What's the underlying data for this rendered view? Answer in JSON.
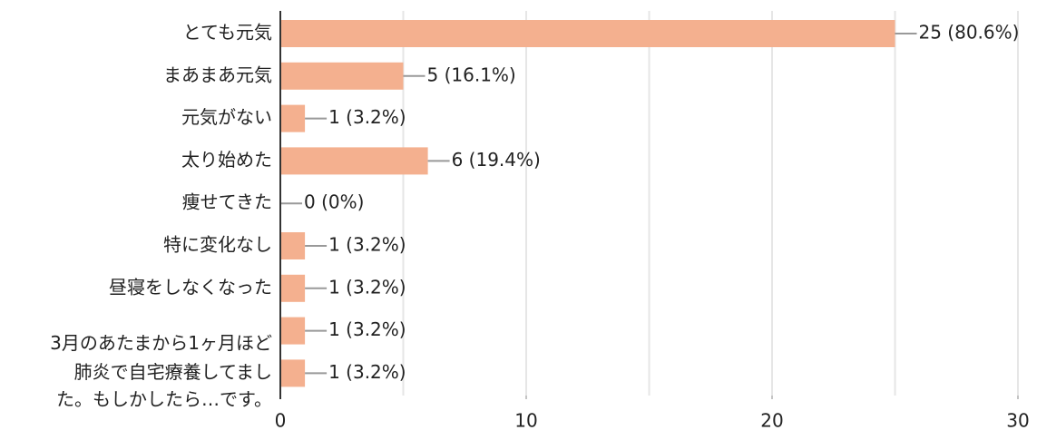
{
  "chart_data": {
    "type": "bar",
    "orientation": "horizontal",
    "categories": [
      "とても元気",
      "まあまあ元気",
      "元気がない",
      "太り始めた",
      "痩せてきた",
      "特に変化なし",
      "昼寝をしなくなった",
      "3月のあたまから1ヶ月ほど",
      [
        "肺炎で自宅療養してまし",
        "た。もしかしたら…です。"
      ]
    ],
    "values": [
      25,
      5,
      1,
      6,
      0,
      1,
      1,
      1,
      1
    ],
    "value_labels": [
      "25 (80.6%)",
      "5 (16.1%)",
      "1 (3.2%)",
      "6 (19.4%)",
      "0 (0%)",
      "1 (3.2%)",
      "1 (3.2%)",
      "1 (3.2%)",
      "1 (3.2%)"
    ],
    "color": "#f4b08f",
    "xlim": [
      0,
      30
    ],
    "xticks": [
      0,
      10,
      20,
      30
    ],
    "xgrid": [
      5,
      10,
      15,
      20,
      25,
      30
    ],
    "grid": true
  }
}
